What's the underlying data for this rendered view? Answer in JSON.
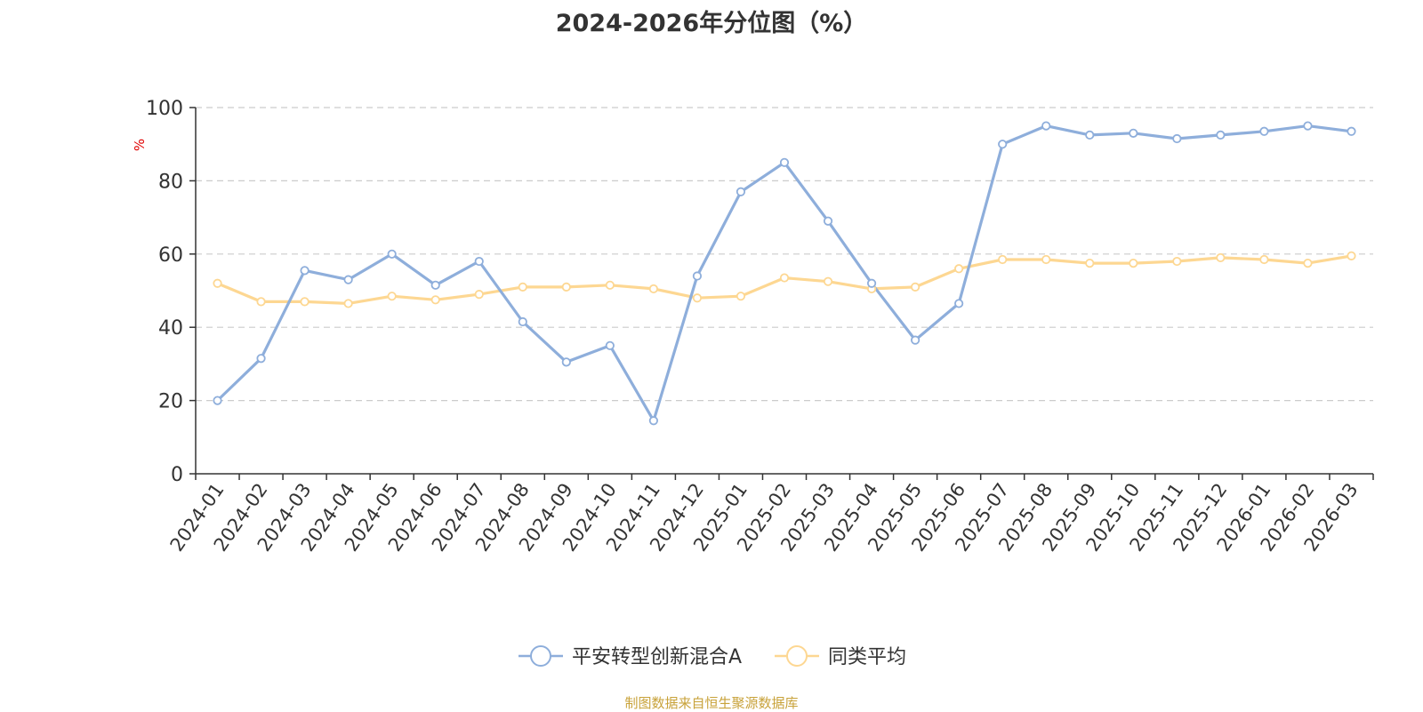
{
  "footer": "制图数据来自恒生聚源数据库",
  "chart_data": {
    "type": "line",
    "title": "2024-2026年分位图（%）",
    "ylabel": "%",
    "ylim": [
      0,
      100
    ],
    "yticks": [
      0,
      20,
      40,
      60,
      80,
      100
    ],
    "grid": true,
    "legend_position": "bottom",
    "categories": [
      "2024-01",
      "2024-02",
      "2024-03",
      "2024-04",
      "2024-05",
      "2024-06",
      "2024-07",
      "2024-08",
      "2024-09",
      "2024-10",
      "2024-11",
      "2024-12",
      "2025-01",
      "2025-02",
      "2025-03",
      "2025-04",
      "2025-05",
      "2025-06",
      "2025-07",
      "2025-08",
      "2025-09",
      "2025-10",
      "2025-11",
      "2025-12",
      "2026-01",
      "2026-02",
      "2026-03"
    ],
    "series": [
      {
        "name": "平安转型创新混合A",
        "color": "#8eaedb",
        "values": [
          20,
          31.5,
          55.5,
          53,
          60,
          51.5,
          58,
          41.5,
          30.5,
          35,
          14.5,
          54,
          77,
          85,
          69,
          52,
          36.5,
          46.5,
          90,
          95,
          92.5,
          93,
          91.5,
          92.5,
          93.5,
          95,
          93.5
        ]
      },
      {
        "name": "同类平均",
        "color": "#fdd792",
        "values": [
          52,
          47,
          47,
          46.5,
          48.5,
          47.5,
          49,
          51,
          51,
          51.5,
          50.5,
          48,
          48.5,
          53.5,
          52.5,
          50.5,
          51,
          56,
          58.5,
          58.5,
          57.5,
          57.5,
          58,
          59,
          58.5,
          57.5,
          59.5
        ]
      }
    ]
  }
}
